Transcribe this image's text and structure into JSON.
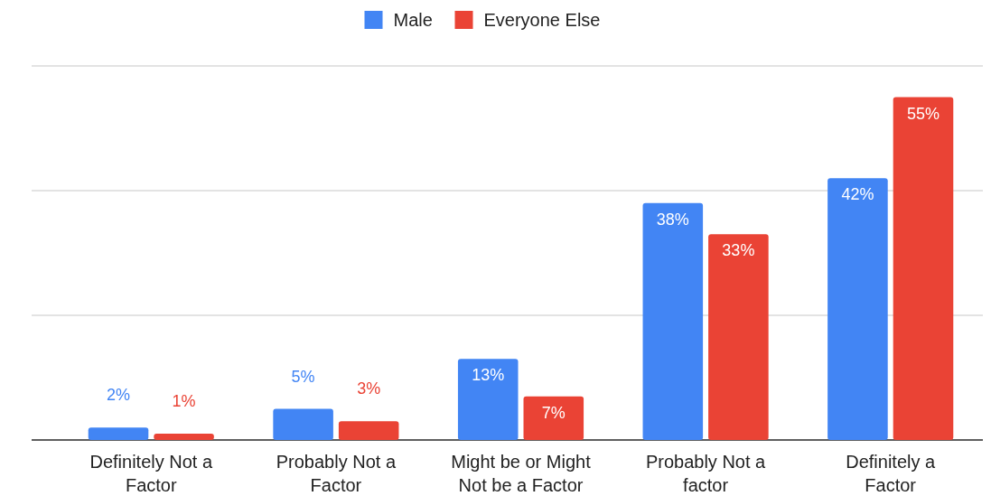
{
  "chart_data": {
    "type": "bar",
    "categories": [
      "Definitely Not a Factor",
      "Probably Not a Factor",
      "Might be or Might Not be a Factor",
      "Probably Not a factor",
      "Definitely a Factor"
    ],
    "series": [
      {
        "name": "Male",
        "color": "#4285f4",
        "values": [
          2,
          5,
          13,
          38,
          42
        ],
        "value_labels": [
          "2%",
          "5%",
          "13%",
          "38%",
          "42%"
        ]
      },
      {
        "name": "Everyone Else",
        "color": "#ea4335",
        "values": [
          1,
          3,
          7,
          33,
          55
        ],
        "value_labels": [
          "1%",
          "3%",
          "7%",
          "33%",
          "55%"
        ]
      }
    ],
    "ylim": [
      0,
      60
    ],
    "yticks": [
      {
        "value": 0,
        "label": null
      },
      {
        "value": 20,
        "label": null
      },
      {
        "value": 40,
        "label": null
      },
      {
        "value": 60,
        "label": null
      }
    ],
    "tick_labels": "x",
    "grid": "y",
    "legend": "top"
  }
}
